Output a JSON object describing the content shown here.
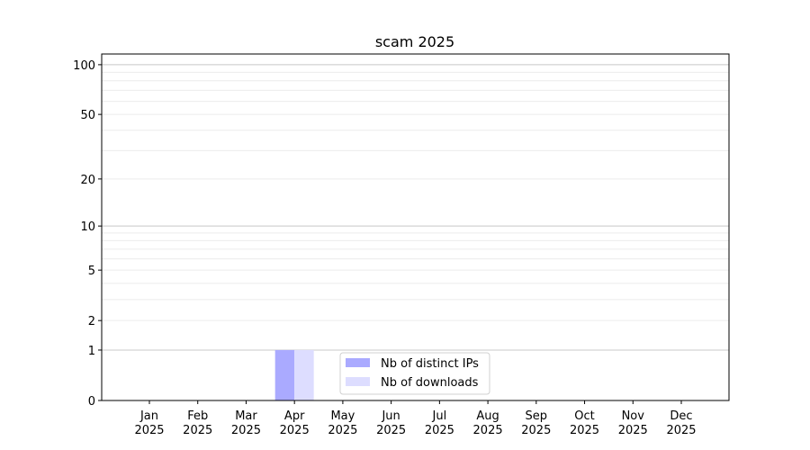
{
  "chart_data": {
    "type": "bar",
    "title": "scam 2025",
    "xlabel": "",
    "ylabel": "",
    "yscale": "log(1+y)",
    "ylim": [
      0,
      116
    ],
    "yticks": [
      0,
      1,
      2,
      5,
      10,
      20,
      50,
      100
    ],
    "grid": "horizontal, major at 1/10/100 and minor",
    "legend_position": "bottom-center",
    "categories": [
      "Jan\n2025",
      "Feb\n2025",
      "Mar\n2025",
      "Apr\n2025",
      "May\n2025",
      "Jun\n2025",
      "Jul\n2025",
      "Aug\n2025",
      "Sep\n2025",
      "Oct\n2025",
      "Nov\n2025",
      "Dec\n2025"
    ],
    "series": [
      {
        "name": "Nb of distinct IPs",
        "color": "#aaaaff",
        "values": [
          0,
          0,
          0,
          1,
          0,
          0,
          0,
          0,
          0,
          0,
          0,
          0
        ]
      },
      {
        "name": "Nb of downloads",
        "color": "#ddddff",
        "values": [
          0,
          0,
          0,
          1,
          0,
          0,
          0,
          0,
          0,
          0,
          0,
          0
        ]
      }
    ]
  }
}
